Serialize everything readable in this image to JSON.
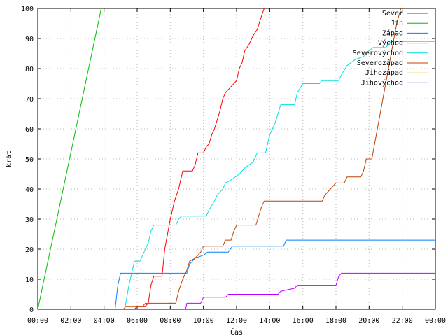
{
  "chart_data": {
    "type": "line",
    "title": "",
    "xlabel": "Čas",
    "ylabel": "krát",
    "xlim": [
      "00:00",
      "24:00"
    ],
    "ylim": [
      0,
      100
    ],
    "x_ticks": [
      "00:00",
      "02:00",
      "04:00",
      "06:00",
      "08:00",
      "10:00",
      "12:00",
      "14:00",
      "16:00",
      "18:00",
      "20:00",
      "22:00",
      "00:00"
    ],
    "y_ticks": [
      0,
      10,
      20,
      30,
      40,
      50,
      60,
      70,
      80,
      90,
      100
    ],
    "grid": true,
    "legend_position": "top-right",
    "series": [
      {
        "name": "Sever",
        "color": "#ff0000",
        "points": [
          [
            "00:00",
            0
          ],
          [
            "05:50",
            0
          ],
          [
            "06:00",
            1
          ],
          [
            "06:30",
            1
          ],
          [
            "06:40",
            2
          ],
          [
            "06:50",
            8
          ],
          [
            "07:00",
            11
          ],
          [
            "07:30",
            11
          ],
          [
            "07:40",
            20
          ],
          [
            "08:00",
            30
          ],
          [
            "08:15",
            36
          ],
          [
            "08:30",
            40
          ],
          [
            "08:45",
            46
          ],
          [
            "09:20",
            46
          ],
          [
            "09:30",
            48
          ],
          [
            "09:40",
            52
          ],
          [
            "10:00",
            52
          ],
          [
            "10:10",
            54
          ],
          [
            "10:20",
            55
          ],
          [
            "10:30",
            58
          ],
          [
            "10:40",
            60
          ],
          [
            "10:50",
            63
          ],
          [
            "11:00",
            66
          ],
          [
            "11:10",
            70
          ],
          [
            "11:20",
            72
          ],
          [
            "11:40",
            74
          ],
          [
            "12:00",
            76
          ],
          [
            "12:10",
            80
          ],
          [
            "12:20",
            82
          ],
          [
            "12:30",
            86
          ],
          [
            "12:45",
            88
          ],
          [
            "13:00",
            91
          ],
          [
            "13:15",
            93
          ],
          [
            "13:25",
            96
          ],
          [
            "13:40",
            100
          ]
        ]
      },
      {
        "name": "Jih",
        "color": "#00c000",
        "points": [
          [
            "00:00",
            0
          ],
          [
            "03:50",
            100
          ]
        ]
      },
      {
        "name": "Západ",
        "color": "#0080ff",
        "points": [
          [
            "00:00",
            0
          ],
          [
            "04:40",
            0
          ],
          [
            "04:50",
            8
          ],
          [
            "05:00",
            12
          ],
          [
            "07:30",
            12
          ],
          [
            "09:00",
            12
          ],
          [
            "09:10",
            15
          ],
          [
            "09:30",
            17
          ],
          [
            "10:00",
            18
          ],
          [
            "10:15",
            19
          ],
          [
            "11:30",
            19
          ],
          [
            "11:45",
            21
          ],
          [
            "14:50",
            21
          ],
          [
            "15:00",
            23
          ],
          [
            "24:00",
            23
          ]
        ]
      },
      {
        "name": "Východ",
        "color": "#c000ff",
        "points": [
          [
            "00:00",
            0
          ],
          [
            "08:55",
            0
          ],
          [
            "09:00",
            2
          ],
          [
            "09:50",
            2
          ],
          [
            "10:00",
            4
          ],
          [
            "11:20",
            4
          ],
          [
            "11:30",
            5
          ],
          [
            "14:30",
            5
          ],
          [
            "14:40",
            6
          ],
          [
            "15:30",
            7
          ],
          [
            "15:40",
            8
          ],
          [
            "18:00",
            8
          ],
          [
            "18:10",
            11
          ],
          [
            "18:20",
            12
          ],
          [
            "24:00",
            12
          ]
        ]
      },
      {
        "name": "Severovýchod",
        "color": "#00e0e0",
        "points": [
          [
            "00:00",
            0
          ],
          [
            "05:15",
            0
          ],
          [
            "05:30",
            8
          ],
          [
            "05:40",
            12
          ],
          [
            "05:50",
            16
          ],
          [
            "06:10",
            16
          ],
          [
            "06:20",
            18
          ],
          [
            "06:40",
            22
          ],
          [
            "06:50",
            26
          ],
          [
            "07:00",
            28
          ],
          [
            "08:20",
            28
          ],
          [
            "08:30",
            30
          ],
          [
            "08:40",
            31
          ],
          [
            "10:10",
            31
          ],
          [
            "10:20",
            33
          ],
          [
            "10:40",
            36
          ],
          [
            "10:50",
            38
          ],
          [
            "11:10",
            40
          ],
          [
            "11:20",
            42
          ],
          [
            "11:40",
            43
          ],
          [
            "12:10",
            45
          ],
          [
            "12:30",
            47
          ],
          [
            "13:00",
            49
          ],
          [
            "13:15",
            52
          ],
          [
            "13:45",
            52
          ],
          [
            "14:00",
            58
          ],
          [
            "14:20",
            62
          ],
          [
            "14:40",
            68
          ],
          [
            "15:30",
            68
          ],
          [
            "15:40",
            72
          ],
          [
            "16:00",
            75
          ],
          [
            "17:00",
            75
          ],
          [
            "17:10",
            76
          ],
          [
            "18:10",
            76
          ],
          [
            "18:20",
            78
          ],
          [
            "18:40",
            81
          ],
          [
            "19:10",
            83
          ],
          [
            "19:40",
            84
          ],
          [
            "20:00",
            86
          ],
          [
            "20:15",
            87
          ],
          [
            "21:00",
            87
          ],
          [
            "21:20",
            89
          ],
          [
            "24:00",
            89
          ]
        ]
      },
      {
        "name": "Severozápad",
        "color": "#c04000",
        "points": [
          [
            "00:00",
            0
          ],
          [
            "05:10",
            0
          ],
          [
            "05:20",
            1
          ],
          [
            "06:20",
            1
          ],
          [
            "06:30",
            2
          ],
          [
            "08:20",
            2
          ],
          [
            "08:30",
            6
          ],
          [
            "08:45",
            10
          ],
          [
            "09:00",
            13
          ],
          [
            "09:10",
            16
          ],
          [
            "09:30",
            17
          ],
          [
            "09:50",
            19
          ],
          [
            "10:00",
            21
          ],
          [
            "11:10",
            21
          ],
          [
            "11:20",
            23
          ],
          [
            "11:40",
            23
          ],
          [
            "11:50",
            26
          ],
          [
            "12:00",
            28
          ],
          [
            "13:10",
            28
          ],
          [
            "13:20",
            31
          ],
          [
            "13:30",
            34
          ],
          [
            "13:40",
            36
          ],
          [
            "17:10",
            36
          ],
          [
            "17:20",
            38
          ],
          [
            "17:40",
            40
          ],
          [
            "18:00",
            42
          ],
          [
            "18:30",
            42
          ],
          [
            "18:40",
            44
          ],
          [
            "19:30",
            44
          ],
          [
            "19:40",
            46
          ],
          [
            "19:50",
            50
          ],
          [
            "20:10",
            50
          ],
          [
            "20:20",
            55
          ],
          [
            "20:40",
            65
          ],
          [
            "21:00",
            75
          ],
          [
            "21:20",
            85
          ],
          [
            "21:40",
            95
          ],
          [
            "21:55",
            100
          ]
        ]
      },
      {
        "name": "Jihozápad",
        "color": "#e0c000",
        "points": []
      },
      {
        "name": "Jihovýchod",
        "color": "#4000c0",
        "points": []
      }
    ]
  }
}
